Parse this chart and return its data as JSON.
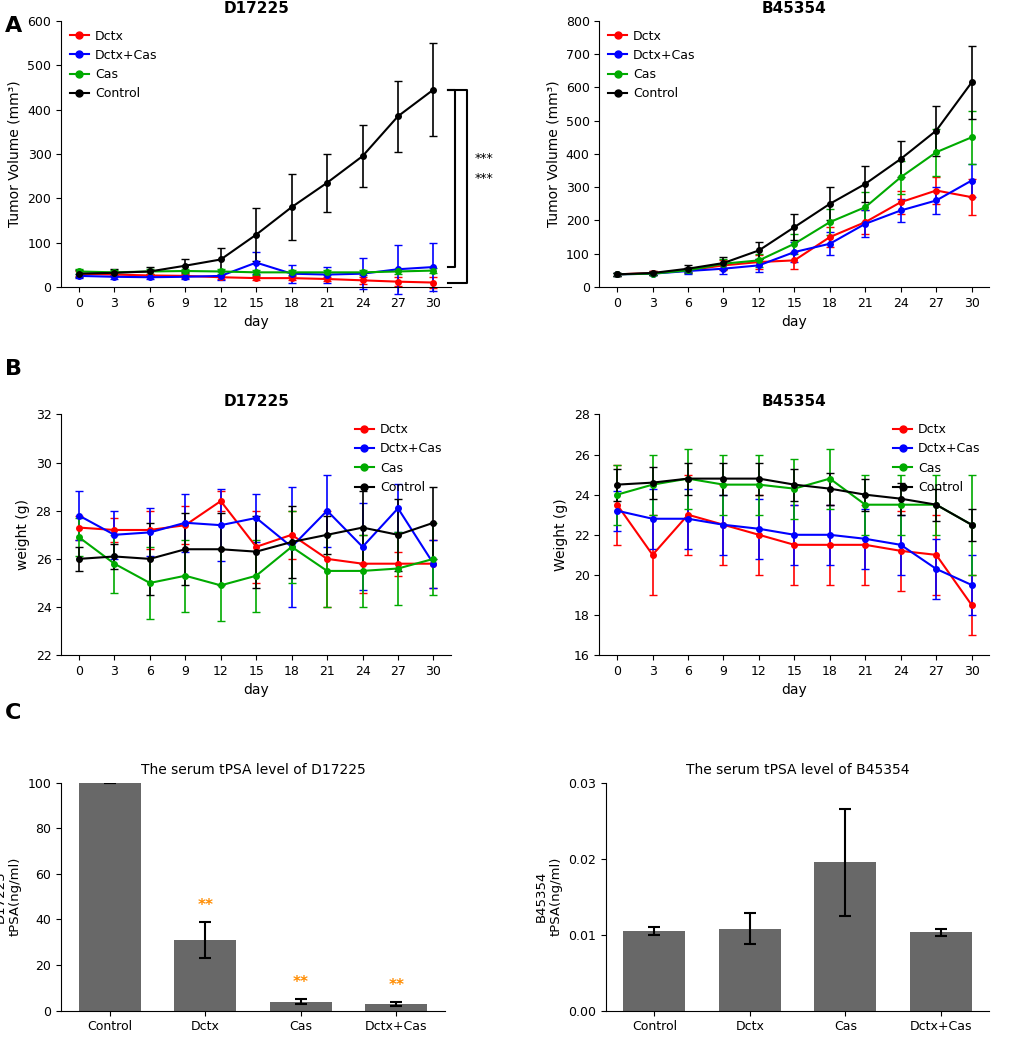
{
  "days": [
    0,
    3,
    6,
    9,
    12,
    15,
    18,
    21,
    24,
    27,
    30
  ],
  "A_D17225": {
    "title": "D17225",
    "ylabel": "Tumor Volume (mm³)",
    "xlabel": "day",
    "ylim": [
      0,
      600
    ],
    "yticks": [
      0,
      100,
      200,
      300,
      400,
      500,
      600
    ],
    "Dctx": [
      30,
      28,
      26,
      25,
      22,
      20,
      20,
      18,
      15,
      12,
      10
    ],
    "Dctx_err": [
      5,
      4,
      4,
      4,
      5,
      5,
      5,
      5,
      8,
      10,
      12
    ],
    "DctxCas": [
      25,
      23,
      22,
      23,
      25,
      55,
      30,
      28,
      30,
      40,
      45
    ],
    "DctxCas_err": [
      5,
      5,
      5,
      5,
      10,
      25,
      20,
      18,
      35,
      55,
      55
    ],
    "Cas": [
      35,
      33,
      35,
      36,
      35,
      33,
      33,
      33,
      33,
      35,
      37
    ],
    "Cas_err": [
      5,
      5,
      5,
      5,
      5,
      5,
      5,
      5,
      5,
      5,
      5
    ],
    "Control": [
      30,
      32,
      35,
      48,
      62,
      118,
      180,
      235,
      295,
      385,
      445
    ],
    "Control_err": [
      8,
      8,
      10,
      15,
      25,
      60,
      75,
      65,
      70,
      80,
      105
    ]
  },
  "A_B45354": {
    "title": "B45354",
    "ylabel": "Tumor Volume (mm³)",
    "xlabel": "day",
    "ylim": [
      0,
      800
    ],
    "yticks": [
      0,
      100,
      200,
      300,
      400,
      500,
      600,
      700,
      800
    ],
    "Dctx": [
      38,
      42,
      50,
      65,
      75,
      80,
      150,
      195,
      255,
      290,
      270
    ],
    "Dctx_err": [
      5,
      5,
      8,
      15,
      20,
      25,
      30,
      35,
      35,
      40,
      55
    ],
    "DctxCas": [
      38,
      40,
      48,
      55,
      65,
      105,
      130,
      190,
      230,
      260,
      320
    ],
    "DctxCas_err": [
      5,
      5,
      8,
      15,
      20,
      30,
      35,
      40,
      35,
      40,
      50
    ],
    "Cas": [
      38,
      40,
      50,
      70,
      80,
      130,
      195,
      240,
      330,
      405,
      450
    ],
    "Cas_err": [
      5,
      5,
      8,
      15,
      20,
      30,
      40,
      45,
      50,
      70,
      80
    ],
    "Control": [
      38,
      42,
      55,
      72,
      110,
      180,
      250,
      310,
      385,
      470,
      615
    ],
    "Control_err": [
      5,
      5,
      10,
      18,
      25,
      40,
      50,
      55,
      55,
      75,
      110
    ]
  },
  "B_D17225": {
    "title": "D17225",
    "ylabel": "weight (g)",
    "xlabel": "day",
    "ylim": [
      22,
      32
    ],
    "yticks": [
      22,
      24,
      26,
      28,
      30,
      32
    ],
    "Dctx": [
      27.3,
      27.2,
      27.2,
      27.4,
      28.4,
      26.5,
      27.0,
      26.0,
      25.8,
      25.8,
      25.8
    ],
    "Dctx_err": [
      0.5,
      0.5,
      0.8,
      0.8,
      0.4,
      1.5,
      1.0,
      2.0,
      1.2,
      0.5,
      1.0
    ],
    "DctxCas": [
      27.8,
      27.0,
      27.1,
      27.5,
      27.4,
      27.7,
      26.5,
      28.0,
      26.5,
      28.1,
      25.8
    ],
    "DctxCas_err": [
      1.0,
      1.0,
      1.0,
      1.2,
      1.5,
      1.0,
      2.5,
      1.5,
      1.8,
      1.0,
      1.0
    ],
    "Cas": [
      26.9,
      25.8,
      25.0,
      25.3,
      24.9,
      25.3,
      26.5,
      25.5,
      25.5,
      25.6,
      26.0
    ],
    "Cas_err": [
      0.8,
      1.2,
      1.5,
      1.5,
      1.5,
      1.5,
      1.5,
      1.5,
      1.5,
      1.5,
      1.5
    ],
    "Control": [
      26.0,
      26.1,
      26.0,
      26.4,
      26.4,
      26.3,
      26.7,
      27.0,
      27.3,
      27.0,
      27.5
    ],
    "Control_err": [
      0.5,
      0.5,
      1.5,
      1.5,
      1.5,
      1.5,
      1.5,
      0.8,
      1.5,
      1.5,
      1.5
    ]
  },
  "B_B45354": {
    "title": "B45354",
    "ylabel": "Weight (g)",
    "xlabel": "day",
    "ylim": [
      16,
      28
    ],
    "yticks": [
      16,
      18,
      20,
      22,
      24,
      26,
      28
    ],
    "Dctx": [
      23.5,
      21.0,
      23.0,
      22.5,
      22.0,
      21.5,
      21.5,
      21.5,
      21.2,
      21.0,
      18.5
    ],
    "Dctx_err": [
      2.0,
      2.0,
      2.0,
      2.0,
      2.0,
      2.0,
      2.0,
      2.0,
      2.0,
      2.0,
      1.5
    ],
    "DctxCas": [
      23.2,
      22.8,
      22.8,
      22.5,
      22.3,
      22.0,
      22.0,
      21.8,
      21.5,
      20.3,
      19.5
    ],
    "DctxCas_err": [
      1.0,
      1.5,
      1.5,
      1.5,
      1.5,
      1.5,
      1.5,
      1.5,
      1.5,
      1.5,
      1.5
    ],
    "Cas": [
      24.0,
      24.5,
      24.8,
      24.5,
      24.5,
      24.3,
      24.8,
      23.5,
      23.5,
      23.5,
      22.5
    ],
    "Cas_err": [
      1.5,
      1.5,
      1.5,
      1.5,
      1.5,
      1.5,
      1.5,
      1.5,
      1.5,
      1.5,
      2.5
    ],
    "Control": [
      24.5,
      24.6,
      24.8,
      24.8,
      24.8,
      24.5,
      24.3,
      24.0,
      23.8,
      23.5,
      22.5
    ],
    "Control_err": [
      0.8,
      0.8,
      0.8,
      0.8,
      0.8,
      0.8,
      0.8,
      0.8,
      0.8,
      0.8,
      0.8
    ]
  },
  "C_D17225": {
    "title": "The serum tPSA level of D17225",
    "ylabel": "D17225\ntPSA(ng/ml)",
    "categories": [
      "Control",
      "Dctx",
      "Cas",
      "Dctx+Cas"
    ],
    "values": [
      100,
      31,
      4,
      3
    ],
    "errors": [
      0,
      8,
      1.0,
      0.8
    ],
    "ylim": [
      0,
      100
    ],
    "yticks": [
      0,
      20,
      40,
      60,
      80,
      100
    ],
    "sig": [
      "",
      "**",
      "**",
      "**"
    ]
  },
  "C_B45354": {
    "title": "The serum tPSA level of B45354",
    "ylabel": "B45354\ntPSA(ng/ml)",
    "categories": [
      "Control",
      "Dctx",
      "Cas",
      "Dctx+Cas"
    ],
    "values": [
      0.0105,
      0.0108,
      0.0195,
      0.0103
    ],
    "errors": [
      0.0005,
      0.002,
      0.007,
      0.0005
    ],
    "ylim": [
      0.0,
      0.03
    ],
    "yticks": [
      0.0,
      0.01,
      0.02,
      0.03
    ],
    "sig": [
      "",
      "",
      "",
      ""
    ]
  },
  "colors": {
    "Dctx": "#FF0000",
    "DctxCas": "#0000FF",
    "Cas": "#00AA00",
    "Control": "#000000",
    "bar": "#686868"
  }
}
